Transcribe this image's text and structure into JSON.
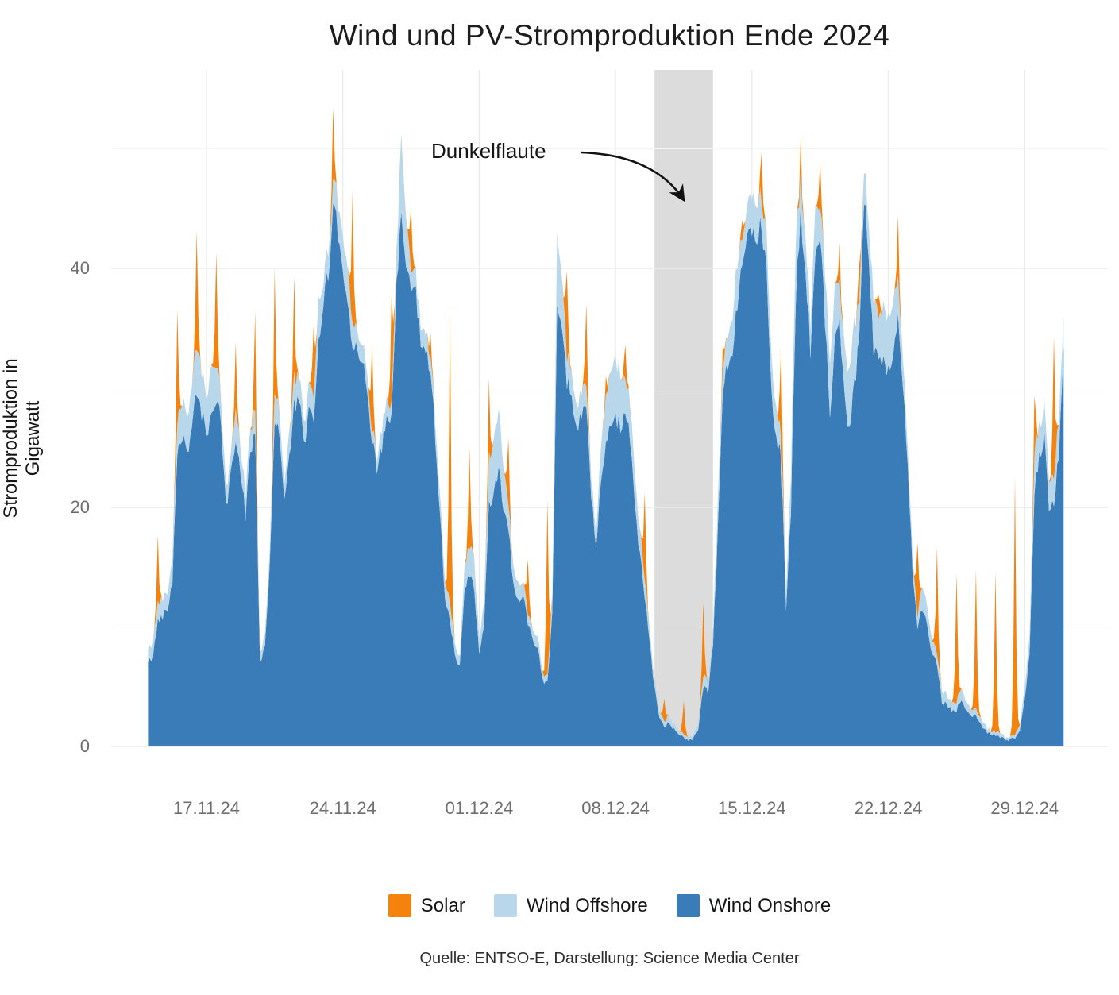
{
  "title": "Wind und PV-Stromproduktion Ende 2024",
  "y_axis": {
    "title": "Stromproduktion in Gigawatt",
    "tick_labels": [
      "0",
      "20",
      "40"
    ]
  },
  "x_axis": {
    "tick_labels": [
      "17.11.24",
      "24.11.24",
      "01.12.24",
      "08.12.24",
      "15.12.24",
      "22.12.24",
      "29.12.24"
    ]
  },
  "annotation": {
    "label": "Dunkelflaute"
  },
  "caption": "Quelle: ENTSO-E, Darstellung: Science Media Center",
  "legend": {
    "items": [
      {
        "label": "Solar",
        "color": "#F5820D"
      },
      {
        "label": "Wind Offshore",
        "color": "#B9D7EA"
      },
      {
        "label": "Wind Onshore",
        "color": "#3A7CB8"
      }
    ]
  },
  "colors": {
    "solar": "#F5820D",
    "wind_offshore": "#B9D7EA",
    "wind_onshore": "#3A7CB8",
    "highlight_band": "#DCDCDC",
    "grid_major": "#ECECEC",
    "grid_minor": "#F5F5F5",
    "annotation_arrow": "#111111",
    "tick_text": "#6E6E6E"
  },
  "chart_data": {
    "type": "area",
    "stacked": true,
    "stack_order_bottom_to_top": [
      "Wind Onshore",
      "Wind Offshore",
      "Solar"
    ],
    "title": "Wind und PV-Stromproduktion Ende 2024",
    "ylabel": "Stromproduktion in Gigawatt",
    "unit": "GW",
    "start": "2024-11-14 00:00",
    "step_hours": 6,
    "ylim": [
      0,
      56.6
    ],
    "y_ticks": [
      0,
      20,
      40
    ],
    "y_minor_ticks": [
      10,
      30,
      50
    ],
    "grid": true,
    "legend_position": "bottom",
    "x_ticks": [
      {
        "label": "17.11.24",
        "day_index": 3
      },
      {
        "label": "24.11.24",
        "day_index": 10
      },
      {
        "label": "01.12.24",
        "day_index": 17
      },
      {
        "label": "08.12.24",
        "day_index": 24
      },
      {
        "label": "15.12.24",
        "day_index": 31
      },
      {
        "label": "22.12.24",
        "day_index": 38
      },
      {
        "label": "29.12.24",
        "day_index": 45
      }
    ],
    "highlight_band": {
      "label": "Dunkelflaute",
      "start": "2024-12-10 00:00",
      "end": "2024-12-13 00:00",
      "start_day_index": 26,
      "end_day_index": 29
    },
    "series": [
      {
        "name": "Wind Onshore",
        "color": "#3A7CB8",
        "values": [
          7,
          7.5,
          10.5,
          11,
          11.5,
          14,
          25,
          26,
          25,
          26,
          30,
          28,
          26,
          28,
          29,
          27,
          20,
          22.5,
          26,
          23,
          19.5,
          24.5,
          26.5,
          7,
          8.5,
          15,
          27.5,
          26.4,
          20.6,
          24,
          28.5,
          29,
          25.2,
          28,
          27,
          33.2,
          37.9,
          39,
          46,
          43,
          40,
          37,
          34,
          34,
          32,
          29.5,
          26,
          23.5,
          25,
          27,
          27.5,
          38,
          45,
          40,
          38.5,
          38,
          33.5,
          33,
          32,
          26,
          19,
          12.5,
          10.5,
          8,
          6.5,
          13,
          14.5,
          13,
          8,
          10,
          20,
          21,
          23.4,
          20,
          18.5,
          13.5,
          12,
          12.5,
          10.5,
          9,
          8.5,
          5.5,
          5.5,
          11,
          37,
          34,
          30.5,
          29,
          26.5,
          28,
          28.5,
          21,
          16.5,
          22,
          25,
          26.5,
          27.5,
          27,
          28,
          26,
          20,
          16,
          12.5,
          8.5,
          4.8,
          2.2,
          1.6,
          2,
          1.4,
          1,
          0.8,
          0.6,
          0.7,
          1.5,
          5,
          4.5,
          8.5,
          18,
          29.5,
          32,
          33,
          37,
          40.5,
          44,
          43,
          42.5,
          44,
          40,
          30,
          26,
          24.5,
          11,
          20,
          38,
          45,
          40,
          33,
          40,
          43.5,
          36,
          28,
          34,
          36,
          29,
          26.5,
          30,
          34,
          46.5,
          41,
          33,
          32.5,
          32,
          31,
          33,
          35.4,
          30.5,
          24,
          14,
          10,
          11.5,
          10,
          7.5,
          7,
          3.7,
          3.5,
          3,
          3,
          4,
          3,
          2.5,
          2.6,
          1.8,
          1.3,
          1,
          1,
          0.7,
          0.6,
          0.5,
          0.7,
          1.2,
          4,
          8,
          21.5,
          24,
          26,
          20,
          20,
          24.5,
          33.5
        ]
      },
      {
        "name": "Wind Offshore",
        "color": "#B9D7EA",
        "values": [
          1,
          1.2,
          1.5,
          1.5,
          1.5,
          2,
          2.7,
          3,
          3,
          3.5,
          4,
          3.5,
          3,
          4,
          3,
          2,
          1.6,
          1.5,
          2.8,
          2,
          1.8,
          1.9,
          2,
          0.8,
          1,
          1.2,
          2.5,
          2,
          1.5,
          2,
          2.2,
          2,
          1.8,
          2,
          2,
          3.5,
          1.8,
          2,
          2,
          2.5,
          3,
          3,
          2,
          1.5,
          1.5,
          1.5,
          1,
          1,
          1.5,
          1.5,
          1,
          2.5,
          6.4,
          4,
          1.5,
          1.5,
          1.5,
          1.5,
          1.4,
          1.5,
          1.5,
          1.5,
          1.5,
          1,
          0.8,
          2,
          2.5,
          2.5,
          1.2,
          2,
          4,
          4.5,
          5,
          3.5,
          2,
          1.5,
          1.5,
          1.2,
          0.8,
          0.8,
          1,
          0.6,
          0.5,
          1.5,
          6,
          4,
          2.3,
          2,
          1.9,
          2,
          1.7,
          1.5,
          1.2,
          3,
          4,
          4.5,
          5,
          4.5,
          2.8,
          3,
          2.5,
          2,
          1.5,
          1,
          0.7,
          0.6,
          0.5,
          0.6,
          0.4,
          0.3,
          0.3,
          0.25,
          0.3,
          0.5,
          1,
          0.8,
          1.3,
          2.5,
          1.9,
          2.5,
          3,
          3.5,
          2,
          2.5,
          3,
          3,
          2.3,
          3,
          3,
          2.5,
          1.7,
          1.5,
          3,
          5,
          2.6,
          3,
          2.5,
          4,
          2.5,
          4,
          4.5,
          4.5,
          3.2,
          4,
          5,
          5,
          3,
          2.5,
          3,
          4.5,
          3.4,
          4.5,
          4.5,
          4.5,
          3.1,
          2.5,
          1.5,
          1.2,
          1,
          2,
          1.5,
          1.2,
          0.9,
          1,
          0.8,
          0.7,
          0.7,
          1,
          0.7,
          0.6,
          0.6,
          0.5,
          0.4,
          0.3,
          0.3,
          0.3,
          0.2,
          0.2,
          0.3,
          0.4,
          1,
          1.5,
          3.4,
          2.5,
          2.5,
          2.5,
          2.2,
          3,
          2.5
        ]
      },
      {
        "name": "Solar",
        "color": "#F5820D",
        "values": [
          0,
          0,
          5.5,
          0,
          0,
          0,
          9.7,
          0,
          0,
          0,
          10,
          0,
          0,
          0,
          9.7,
          0,
          0,
          0,
          5.5,
          0,
          0,
          0,
          8.3,
          0,
          0,
          0,
          10.5,
          0,
          0,
          0,
          8,
          0,
          0,
          0,
          6,
          0,
          0,
          0,
          6,
          0,
          0,
          0,
          11.2,
          0,
          0,
          0,
          7.4,
          0,
          0,
          0,
          8.9,
          0,
          0,
          0,
          5.5,
          0,
          0,
          0,
          2,
          0,
          0,
          0,
          25,
          0,
          0,
          0,
          8.5,
          0,
          0,
          0,
          6.2,
          0,
          0,
          0,
          5.6,
          0,
          0,
          0,
          4.7,
          0,
          0,
          0,
          14.6,
          0,
          0,
          0,
          7.7,
          0,
          0,
          0,
          7,
          0,
          0,
          0,
          1.5,
          0,
          0,
          0,
          2.9,
          0,
          0,
          0,
          7.4,
          0,
          0,
          0,
          1.9,
          0,
          0,
          0,
          2.8,
          0,
          0,
          0,
          6.3,
          0,
          0,
          0,
          2,
          0,
          0,
          0,
          1.6,
          0,
          0,
          0,
          4.3,
          0,
          0,
          0,
          8,
          0,
          0,
          0,
          3,
          0,
          0,
          0,
          4,
          0,
          0,
          0,
          3,
          0,
          0,
          0,
          3,
          0,
          0,
          0,
          2,
          0,
          0,
          0,
          5,
          0,
          0,
          0,
          6.3,
          0,
          0,
          0,
          9,
          0,
          0,
          0,
          10.8,
          0,
          0,
          0,
          11.6,
          0,
          0,
          0,
          13.5,
          0,
          0,
          0,
          21.6,
          0,
          0,
          0,
          5,
          0,
          0,
          0,
          12,
          0,
          0
        ]
      }
    ]
  }
}
